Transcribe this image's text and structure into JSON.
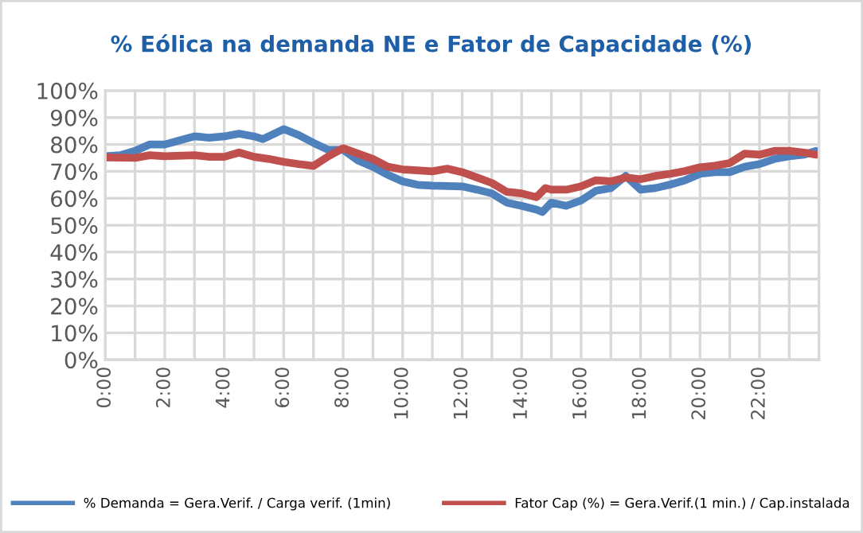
{
  "chart_data": {
    "type": "line",
    "title": "% Eólica na demanda NE e Fator de Capacidade (%)",
    "series": [
      {
        "name": "% Demanda = Gera.Verif. / Carga verif. (1min)",
        "color": "#4f81bd",
        "x": [
          0,
          0.5,
          1,
          1.5,
          2,
          2.5,
          3,
          3.5,
          4,
          4.5,
          5,
          5.3,
          6,
          6.5,
          7,
          7.5,
          8,
          8.5,
          9,
          9.5,
          10,
          10.5,
          11,
          12,
          12.5,
          13,
          13.5,
          14,
          14.5,
          14.7,
          15,
          15.5,
          16,
          16.5,
          17,
          17.5,
          18,
          18.5,
          19,
          19.5,
          20,
          20.5,
          21,
          21.5,
          22,
          22.5,
          23,
          23.5,
          23.9
        ],
        "values": [
          75.6,
          76,
          77.6,
          80,
          80,
          81.5,
          83,
          82.5,
          83,
          84,
          83,
          82,
          85.7,
          83.5,
          80.6,
          78,
          78,
          74,
          71.7,
          68.7,
          66.3,
          65,
          64.7,
          64.4,
          63.2,
          61.8,
          58.4,
          57.2,
          55.8,
          54.9,
          58.4,
          57.2,
          59.2,
          62.8,
          63.8,
          68.3,
          63.2,
          63.8,
          65.1,
          66.7,
          69.1,
          69.7,
          69.7,
          71.7,
          72.7,
          74.6,
          75.6,
          76.2,
          77.6
        ]
      },
      {
        "name": "Fator Cap (%) = Gera.Verif.(1 min.) / Cap.instalada",
        "color": "#c0504d",
        "x": [
          0,
          1,
          1.5,
          2,
          3,
          3.5,
          4,
          4.5,
          5,
          5.5,
          6,
          6.5,
          7,
          7.5,
          8,
          8.5,
          9,
          9.5,
          10,
          11,
          11.5,
          12,
          12.5,
          13,
          13.5,
          14,
          14.5,
          14.8,
          15,
          15.5,
          16,
          16.5,
          17,
          17.5,
          18,
          18.5,
          19,
          19.5,
          20,
          20.5,
          21,
          21.5,
          22,
          22.5,
          23,
          23.5,
          23.9
        ],
        "values": [
          75.2,
          75,
          76,
          75.6,
          76,
          75.4,
          75.4,
          77,
          75.4,
          74.6,
          73.5,
          72.7,
          72,
          75.6,
          78.6,
          76.6,
          74.6,
          71.7,
          70.7,
          70,
          71,
          69.7,
          67.7,
          65.7,
          62.4,
          61.8,
          60.4,
          63.8,
          63.2,
          63.2,
          64.4,
          66.7,
          66.3,
          67.7,
          67.1,
          68.3,
          69.1,
          70.1,
          71.5,
          72.1,
          73.1,
          76.6,
          76.2,
          77.6,
          77.6,
          77,
          76.2
        ]
      }
    ],
    "xlim": [
      0,
      24
    ],
    "xticks": [
      {
        "value": 0,
        "label": "0:00"
      },
      {
        "value": 1,
        "label": null
      },
      {
        "value": 2,
        "label": "2:00"
      },
      {
        "value": 3,
        "label": null
      },
      {
        "value": 4,
        "label": "4:00"
      },
      {
        "value": 5,
        "label": null
      },
      {
        "value": 6,
        "label": "6:00"
      },
      {
        "value": 7,
        "label": null
      },
      {
        "value": 8,
        "label": "8:00"
      },
      {
        "value": 9,
        "label": null
      },
      {
        "value": 10,
        "label": "10:00"
      },
      {
        "value": 11,
        "label": null
      },
      {
        "value": 12,
        "label": "12:00"
      },
      {
        "value": 13,
        "label": null
      },
      {
        "value": 14,
        "label": "14:00"
      },
      {
        "value": 15,
        "label": null
      },
      {
        "value": 16,
        "label": "16:00"
      },
      {
        "value": 17,
        "label": null
      },
      {
        "value": 18,
        "label": "18:00"
      },
      {
        "value": 19,
        "label": null
      },
      {
        "value": 20,
        "label": "20:00"
      },
      {
        "value": 21,
        "label": null
      },
      {
        "value": 22,
        "label": "22:00"
      },
      {
        "value": 23,
        "label": null
      },
      {
        "value": 24,
        "label": null
      }
    ],
    "ylim": [
      0,
      100
    ],
    "yticks": [
      {
        "value": 0,
        "label": "0%"
      },
      {
        "value": 10,
        "label": "10%"
      },
      {
        "value": 20,
        "label": "20%"
      },
      {
        "value": 30,
        "label": "30%"
      },
      {
        "value": 40,
        "label": "40%"
      },
      {
        "value": 50,
        "label": "50%"
      },
      {
        "value": 60,
        "label": "60%"
      },
      {
        "value": 70,
        "label": "70%"
      },
      {
        "value": 80,
        "label": "80%"
      },
      {
        "value": 90,
        "label": "90%"
      },
      {
        "value": 100,
        "label": "100%"
      }
    ],
    "grid": true,
    "legend": "bottom",
    "marker": "none",
    "line_style": "solid"
  }
}
